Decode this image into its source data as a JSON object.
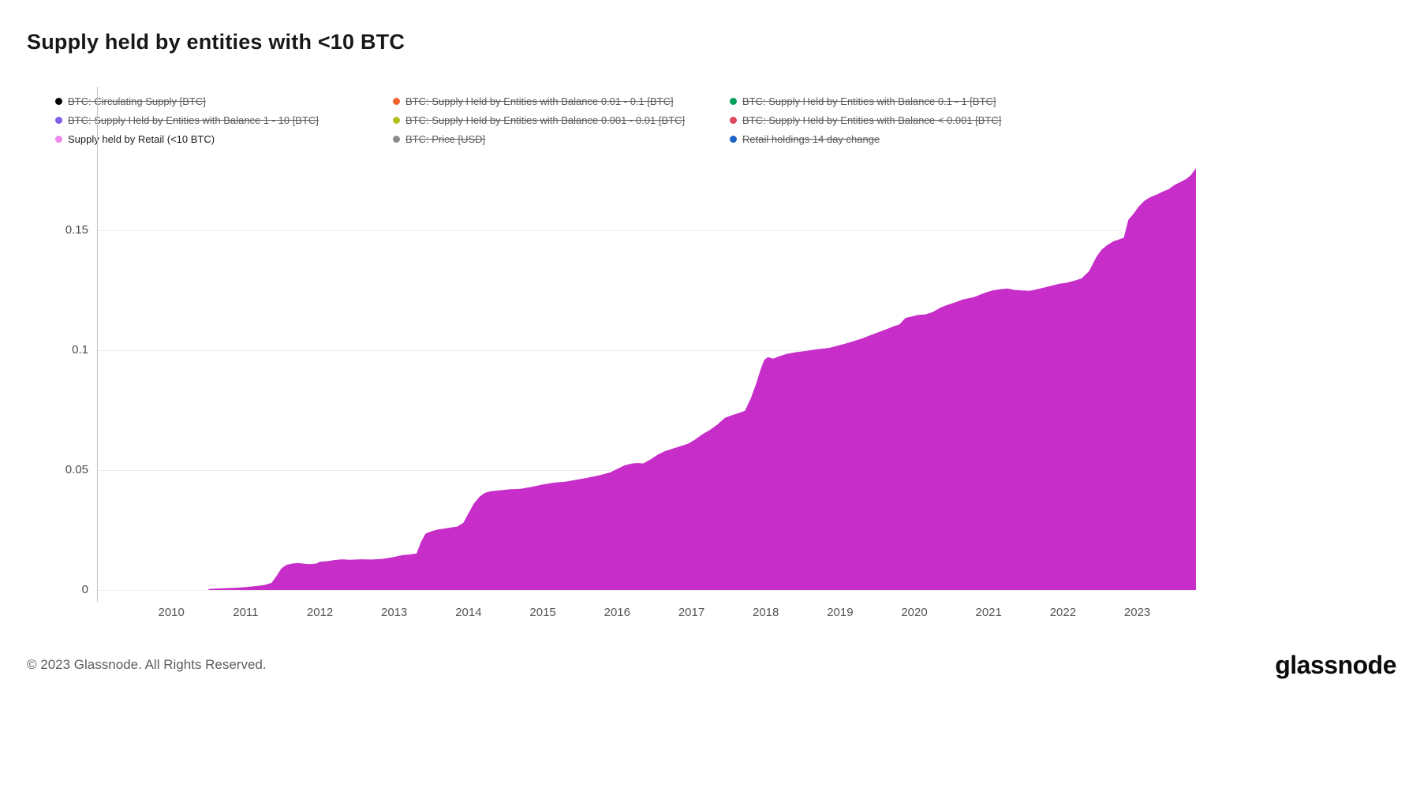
{
  "title": "Supply held by entities with <10 BTC",
  "legend": {
    "items": [
      {
        "label": "BTC: Circulating Supply [BTC]",
        "color": "#000000",
        "active": false
      },
      {
        "label": "BTC: Supply Held by Entities with Balance 0.01 - 0.1 [BTC]",
        "color": "#f2622c",
        "active": false
      },
      {
        "label": "BTC: Supply Held by Entities with Balance 0.1 - 1 [BTC]",
        "color": "#00a05a",
        "active": false
      },
      {
        "label": "BTC: Supply Held by Entities with Balance 1 - 10 [BTC]",
        "color": "#7d5fe8",
        "active": false
      },
      {
        "label": "BTC: Supply Held by Entities with Balance 0.001 - 0.01 [BTC]",
        "color": "#b0c11f",
        "active": false
      },
      {
        "label": "BTC: Supply Held by Entities with Balance < 0.001 [BTC]",
        "color": "#e0485e",
        "active": false
      },
      {
        "label": "Supply held by Retail (<10 BTC)",
        "color": "#ee86ee",
        "active": true
      },
      {
        "label": "BTC: Price [USD]",
        "color": "#8c8c8c",
        "active": false
      },
      {
        "label": "Retail holdings 14 day change",
        "color": "#1f63c4",
        "active": false
      }
    ]
  },
  "footer": {
    "copyright": "© 2023 Glassnode. All Rights Reserved.",
    "brand": "glassnode"
  },
  "chart_data": {
    "type": "area",
    "title": "Supply held by entities with <10 BTC",
    "xlabel": "",
    "ylabel": "",
    "grid": "horizontal",
    "xlim": [
      2009.0,
      2023.79
    ],
    "ylim": [
      0,
      0.182
    ],
    "x_ticks": [
      2010,
      2011,
      2012,
      2013,
      2014,
      2015,
      2016,
      2017,
      2018,
      2019,
      2020,
      2021,
      2022,
      2023
    ],
    "y_ticks": [
      {
        "v": 0,
        "label": "0"
      },
      {
        "v": 0.05,
        "label": "0.05"
      },
      {
        "v": 0.1,
        "label": "0.1"
      },
      {
        "v": 0.15,
        "label": "0.15"
      }
    ],
    "series": [
      {
        "name": "Supply held by Retail (<10 BTC)",
        "color": "#c72dc9",
        "points": [
          [
            2010.5,
            0.0004
          ],
          [
            2010.6,
            0.0006
          ],
          [
            2010.75,
            0.0008
          ],
          [
            2010.9,
            0.001
          ],
          [
            2011.0,
            0.0012
          ],
          [
            2011.1,
            0.0015
          ],
          [
            2011.25,
            0.002
          ],
          [
            2011.35,
            0.003
          ],
          [
            2011.42,
            0.006
          ],
          [
            2011.48,
            0.009
          ],
          [
            2011.55,
            0.0105
          ],
          [
            2011.62,
            0.011
          ],
          [
            2011.7,
            0.0113
          ],
          [
            2011.78,
            0.011
          ],
          [
            2011.85,
            0.0108
          ],
          [
            2011.95,
            0.011
          ],
          [
            2012.0,
            0.0118
          ],
          [
            2012.1,
            0.012
          ],
          [
            2012.2,
            0.0125
          ],
          [
            2012.3,
            0.0128
          ],
          [
            2012.4,
            0.0126
          ],
          [
            2012.55,
            0.0128
          ],
          [
            2012.7,
            0.0127
          ],
          [
            2012.85,
            0.013
          ],
          [
            2013.0,
            0.0138
          ],
          [
            2013.1,
            0.0145
          ],
          [
            2013.2,
            0.0148
          ],
          [
            2013.3,
            0.0152
          ],
          [
            2013.36,
            0.02
          ],
          [
            2013.42,
            0.0235
          ],
          [
            2013.5,
            0.0245
          ],
          [
            2013.58,
            0.0252
          ],
          [
            2013.65,
            0.0255
          ],
          [
            2013.75,
            0.026
          ],
          [
            2013.85,
            0.0265
          ],
          [
            2013.93,
            0.028
          ],
          [
            2014.0,
            0.032
          ],
          [
            2014.07,
            0.036
          ],
          [
            2014.15,
            0.039
          ],
          [
            2014.22,
            0.0405
          ],
          [
            2014.3,
            0.0412
          ],
          [
            2014.4,
            0.0415
          ],
          [
            2014.55,
            0.042
          ],
          [
            2014.7,
            0.0422
          ],
          [
            2014.85,
            0.043
          ],
          [
            2015.0,
            0.044
          ],
          [
            2015.15,
            0.0448
          ],
          [
            2015.3,
            0.0452
          ],
          [
            2015.45,
            0.046
          ],
          [
            2015.6,
            0.0468
          ],
          [
            2015.75,
            0.0478
          ],
          [
            2015.9,
            0.049
          ],
          [
            2016.0,
            0.0505
          ],
          [
            2016.1,
            0.052
          ],
          [
            2016.2,
            0.0528
          ],
          [
            2016.28,
            0.053
          ],
          [
            2016.35,
            0.0528
          ],
          [
            2016.45,
            0.0545
          ],
          [
            2016.55,
            0.0565
          ],
          [
            2016.65,
            0.058
          ],
          [
            2016.8,
            0.0595
          ],
          [
            2016.95,
            0.061
          ],
          [
            2017.05,
            0.0628
          ],
          [
            2017.15,
            0.065
          ],
          [
            2017.25,
            0.0668
          ],
          [
            2017.35,
            0.069
          ],
          [
            2017.45,
            0.0718
          ],
          [
            2017.55,
            0.073
          ],
          [
            2017.65,
            0.074
          ],
          [
            2017.72,
            0.0748
          ],
          [
            2017.8,
            0.08
          ],
          [
            2017.87,
            0.086
          ],
          [
            2017.93,
            0.092
          ],
          [
            2017.98,
            0.096
          ],
          [
            2018.03,
            0.0972
          ],
          [
            2018.1,
            0.0965
          ],
          [
            2018.18,
            0.0975
          ],
          [
            2018.28,
            0.0985
          ],
          [
            2018.4,
            0.0992
          ],
          [
            2018.55,
            0.0998
          ],
          [
            2018.7,
            0.1005
          ],
          [
            2018.85,
            0.101
          ],
          [
            2019.0,
            0.1022
          ],
          [
            2019.15,
            0.1035
          ],
          [
            2019.3,
            0.105
          ],
          [
            2019.45,
            0.1068
          ],
          [
            2019.6,
            0.1085
          ],
          [
            2019.72,
            0.11
          ],
          [
            2019.8,
            0.1108
          ],
          [
            2019.88,
            0.1135
          ],
          [
            2019.95,
            0.114
          ],
          [
            2020.05,
            0.1148
          ],
          [
            2020.15,
            0.115
          ],
          [
            2020.25,
            0.116
          ],
          [
            2020.35,
            0.1178
          ],
          [
            2020.45,
            0.119
          ],
          [
            2020.55,
            0.12
          ],
          [
            2020.65,
            0.1212
          ],
          [
            2020.8,
            0.1222
          ],
          [
            2020.95,
            0.124
          ],
          [
            2021.05,
            0.125
          ],
          [
            2021.15,
            0.1255
          ],
          [
            2021.25,
            0.1258
          ],
          [
            2021.35,
            0.1252
          ],
          [
            2021.45,
            0.125
          ],
          [
            2021.55,
            0.1248
          ],
          [
            2021.65,
            0.1255
          ],
          [
            2021.75,
            0.1262
          ],
          [
            2021.85,
            0.127
          ],
          [
            2021.95,
            0.1278
          ],
          [
            2022.05,
            0.1282
          ],
          [
            2022.15,
            0.129
          ],
          [
            2022.25,
            0.13
          ],
          [
            2022.35,
            0.133
          ],
          [
            2022.45,
            0.139
          ],
          [
            2022.52,
            0.142
          ],
          [
            2022.6,
            0.144
          ],
          [
            2022.68,
            0.1455
          ],
          [
            2022.75,
            0.1462
          ],
          [
            2022.82,
            0.147
          ],
          [
            2022.88,
            0.1545
          ],
          [
            2022.95,
            0.157
          ],
          [
            2023.02,
            0.16
          ],
          [
            2023.1,
            0.1625
          ],
          [
            2023.18,
            0.164
          ],
          [
            2023.26,
            0.165
          ],
          [
            2023.34,
            0.1662
          ],
          [
            2023.42,
            0.1672
          ],
          [
            2023.5,
            0.169
          ],
          [
            2023.58,
            0.1702
          ],
          [
            2023.66,
            0.1715
          ],
          [
            2023.72,
            0.173
          ],
          [
            2023.79,
            0.176
          ]
        ]
      }
    ]
  }
}
